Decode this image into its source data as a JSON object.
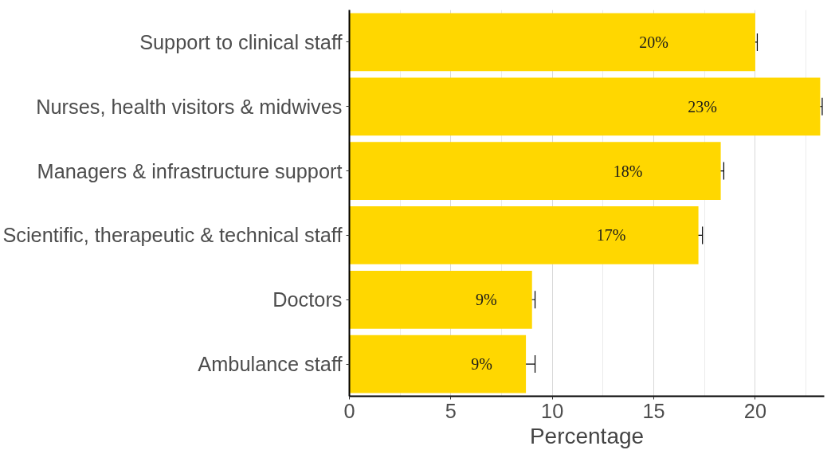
{
  "chart_data": {
    "type": "bar",
    "orientation": "horizontal",
    "xlabel": "Percentage",
    "categories": [
      "Support to clinical staff",
      "Nurses, health visitors & midwives",
      "Managers & infrastructure support",
      "Scientific, therapeutic & technical staff",
      "Doctors",
      "Ambulance staff"
    ],
    "values": [
      20.0,
      23.2,
      18.3,
      17.2,
      9.0,
      8.7
    ],
    "errors": [
      0.1,
      0.1,
      0.15,
      0.2,
      0.15,
      0.45
    ],
    "value_labels": [
      "20%",
      "23%",
      "18%",
      "17%",
      "9%",
      "9%"
    ],
    "color": "#ffd700",
    "xlim": [
      0,
      23.4
    ],
    "xticks": [
      0,
      5,
      10,
      15,
      20
    ],
    "grid": "x"
  }
}
